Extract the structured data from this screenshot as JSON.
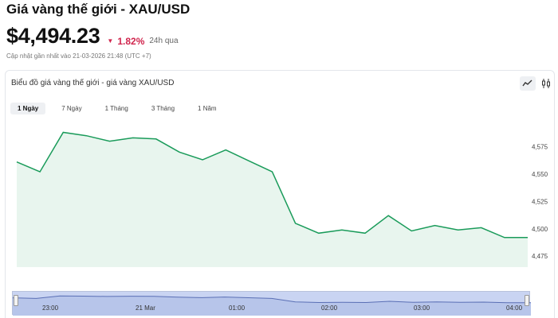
{
  "header": {
    "title": "Giá vàng thế giới - XAU/USD",
    "price": "$4,494.23",
    "change_arrow": "▼",
    "change_percent": "1.82%",
    "change_period": "24h qua",
    "updated_text": "Cập nhật gần nhất vào 21-03-2026 21:48 (UTC +7)",
    "change_color": "#d0254d"
  },
  "chart_card": {
    "title": "Biểu đồ giá vàng thế giới - giá vàng XAU/USD",
    "chart_type_buttons": [
      {
        "icon": "line-chart-icon",
        "active": true
      },
      {
        "icon": "candlestick-icon",
        "active": false
      }
    ],
    "tabs": [
      {
        "label": "1 Ngày",
        "active": true
      },
      {
        "label": "7 Ngày",
        "active": false
      },
      {
        "label": "1 Tháng",
        "active": false
      },
      {
        "label": "3 Tháng",
        "active": false
      },
      {
        "label": "1 Năm",
        "active": false
      }
    ],
    "navigator_labels": [
      "23:00",
      "21 Mar",
      "01:00",
      "02:00",
      "03:00",
      "04:00"
    ]
  },
  "chart_data": {
    "type": "area",
    "y": [
      4561,
      4552,
      4588,
      4585,
      4580,
      4583,
      4582,
      4570,
      4563,
      4572,
      4562,
      4552,
      4505,
      4496,
      4499,
      4496,
      4512,
      4498,
      4503,
      4499,
      4501,
      4492,
      4492
    ],
    "yticks": [
      4475,
      4500,
      4525,
      4550,
      4575
    ],
    "ylim": [
      4465,
      4600
    ],
    "line_color": "#1a9b5a",
    "fill_color": "#e8f5ee",
    "xticks": [
      "23:00",
      "21 Mar",
      "01:00",
      "02:00",
      "03:00",
      "04:00"
    ]
  }
}
